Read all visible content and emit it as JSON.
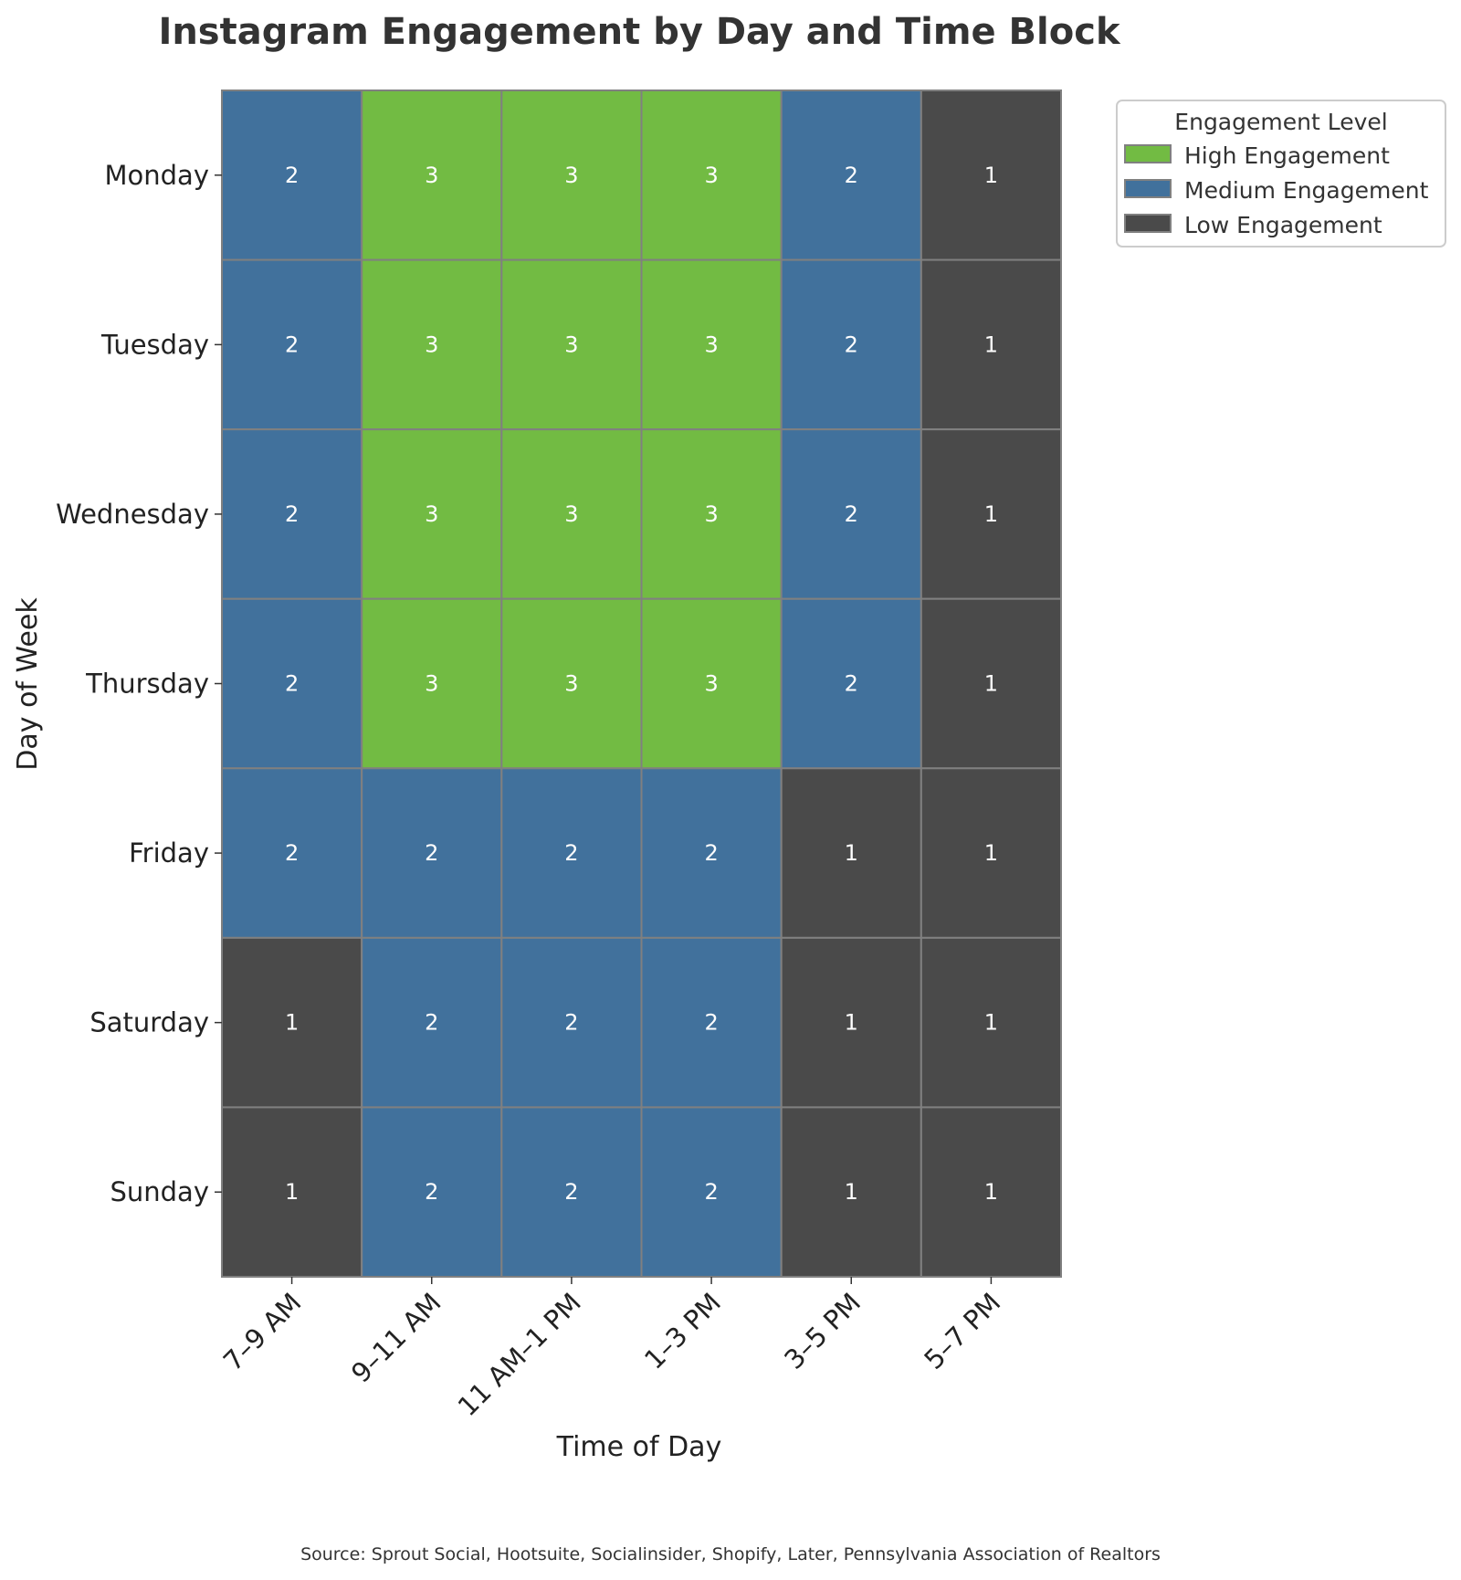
{
  "chart_data": {
    "type": "heatmap",
    "title": "Instagram Engagement by Day and Time Block",
    "xlabel": "Time of Day",
    "ylabel": "Day of Week",
    "x_categories": [
      "7–9 AM",
      "9–11 AM",
      "11 AM–1 PM",
      "1–3 PM",
      "3–5 PM",
      "5–7 PM"
    ],
    "y_categories": [
      "Monday",
      "Tuesday",
      "Wednesday",
      "Thursday",
      "Friday",
      "Saturday",
      "Sunday"
    ],
    "values": [
      [
        2,
        3,
        3,
        3,
        2,
        1
      ],
      [
        2,
        3,
        3,
        3,
        2,
        1
      ],
      [
        2,
        3,
        3,
        3,
        2,
        1
      ],
      [
        2,
        3,
        3,
        3,
        2,
        1
      ],
      [
        2,
        2,
        2,
        2,
        1,
        1
      ],
      [
        1,
        2,
        2,
        2,
        1,
        1
      ],
      [
        1,
        2,
        2,
        2,
        1,
        1
      ]
    ],
    "color_map": {
      "3": "#72bb43",
      "2": "#41719c",
      "1": "#4a4a4a"
    },
    "legend": {
      "title": "Engagement Level",
      "placement": "top-right, outside plot",
      "entries": [
        {
          "label": "High Engagement",
          "value": 3,
          "color": "#72bb43"
        },
        {
          "label": "Medium Engagement",
          "value": 2,
          "color": "#41719c"
        },
        {
          "label": "Low Engagement",
          "value": 1,
          "color": "#4a4a4a"
        }
      ]
    },
    "cell_border_color": "#808080",
    "source": "Source: Sprout Social, Hootsuite, Socialinsider, Shopify, Later, Pennsylvania Association of Realtors"
  }
}
